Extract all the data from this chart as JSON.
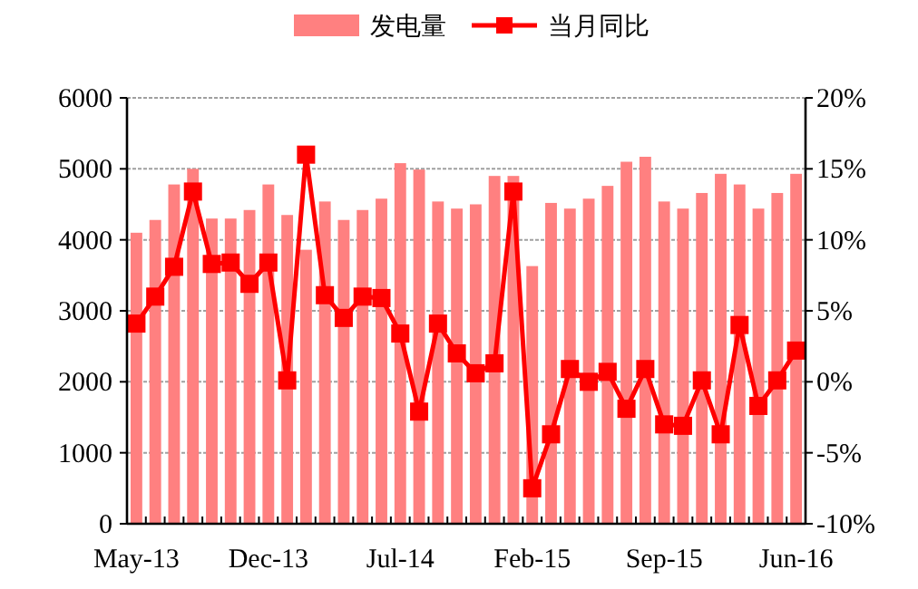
{
  "chart_data": {
    "type": "bar",
    "categories": [
      "May-13",
      null,
      null,
      null,
      null,
      null,
      null,
      "Dec-13",
      null,
      null,
      null,
      null,
      null,
      null,
      "Jul-14",
      null,
      null,
      null,
      null,
      null,
      null,
      "Feb-15",
      null,
      null,
      null,
      null,
      null,
      null,
      "Sep-15",
      null,
      null,
      null,
      null,
      null,
      null,
      "Jun-16"
    ],
    "series": [
      {
        "name": "发电量",
        "color": "#ff8080",
        "values": [
          4100,
          4280,
          4780,
          5000,
          4300,
          4300,
          4420,
          4780,
          4350,
          3860,
          4540,
          4280,
          4420,
          4580,
          5080,
          4990,
          4540,
          4440,
          4500,
          4900,
          4900,
          3630,
          4520,
          4440,
          4580,
          4760,
          5100,
          5170,
          4540,
          4440,
          4660,
          4930,
          4780,
          4440,
          4660,
          4930
        ]
      },
      {
        "name": "当月同比",
        "type": "line",
        "axis": "y2",
        "color": "#ff0000",
        "marker": "square",
        "values": [
          4.1,
          6.0,
          8.1,
          13.4,
          8.3,
          8.4,
          6.9,
          8.4,
          0.1,
          16.0,
          6.1,
          4.5,
          6.0,
          5.9,
          3.4,
          -2.1,
          4.1,
          2.0,
          0.6,
          1.3,
          13.4,
          -7.5,
          -3.7,
          0.9,
          0.0,
          0.7,
          -1.9,
          0.9,
          -3.0,
          -3.1,
          0.1,
          -3.7,
          4.0,
          -1.7,
          0.1,
          2.2
        ]
      }
    ],
    "ylim": [
      0,
      6000
    ],
    "yticks": [
      0,
      1000,
      2000,
      3000,
      4000,
      5000,
      6000
    ],
    "y2lim": [
      -10,
      20
    ],
    "y2ticks": [
      {
        "value": -10,
        "label": "-10%"
      },
      {
        "value": -5,
        "label": "-5%"
      },
      {
        "value": 0,
        "label": "0%"
      },
      {
        "value": 5,
        "label": "5%"
      },
      {
        "value": 10,
        "label": "10%"
      },
      {
        "value": 15,
        "label": "15%"
      },
      {
        "value": 20,
        "label": "20%"
      }
    ],
    "grid": "y",
    "legend": "top"
  }
}
